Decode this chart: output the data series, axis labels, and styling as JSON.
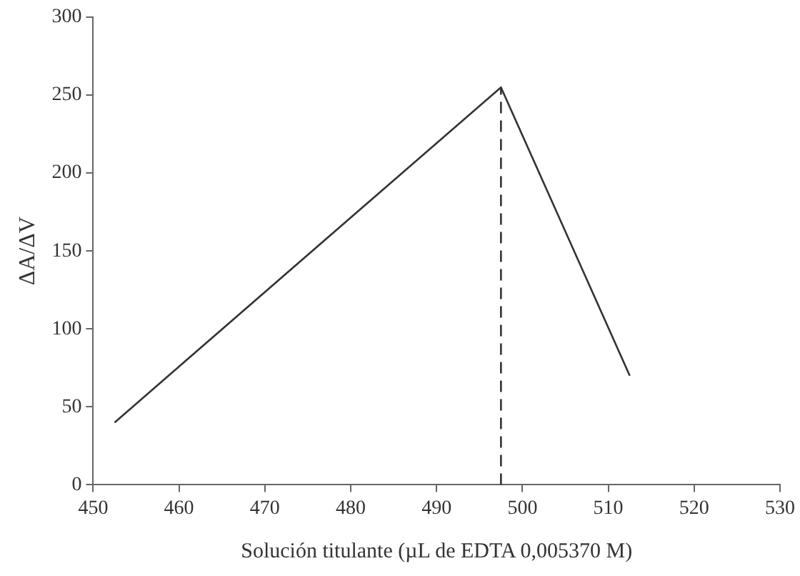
{
  "chart_data": {
    "type": "line",
    "xlabel": "Solución titulante (µL de EDTA 0,005370 M)",
    "ylabel": "ΔA/ΔV",
    "x": [
      452.5,
      497.5,
      512.5
    ],
    "series": [
      {
        "color": "#333333",
        "values": [
          40,
          255,
          70
        ]
      }
    ],
    "xlim": [
      450,
      530
    ],
    "xticks": [
      450,
      460,
      470,
      480,
      490,
      500,
      510,
      520,
      530
    ],
    "ylim": [
      0,
      300
    ],
    "yticks": [
      0,
      50,
      100,
      150,
      200,
      250,
      300
    ],
    "grid": false,
    "legend": false,
    "marker": "none",
    "line_style": "solid",
    "ref_lines": [
      {
        "axis": "x",
        "value": 497.5,
        "color": "#333333",
        "line_style": "dashed"
      }
    ]
  }
}
